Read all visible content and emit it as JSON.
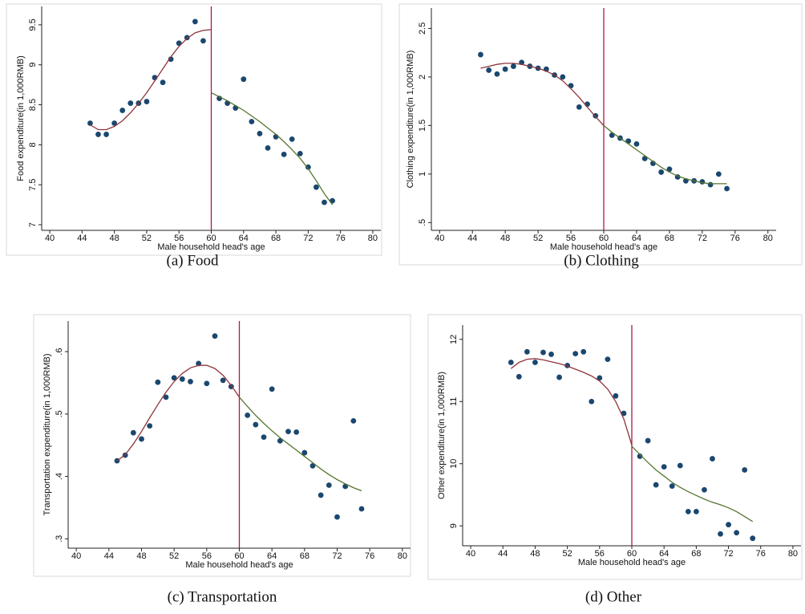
{
  "chart_data": [
    {
      "type": "scatter",
      "caption": "(a) Food",
      "xlabel": "Male household head's age",
      "ylabel": "Food expenditure(in 1,000RMB)",
      "xlim": [
        39,
        81
      ],
      "xticks": [
        40,
        44,
        48,
        52,
        56,
        60,
        64,
        68,
        72,
        76,
        80
      ],
      "ylim": [
        6.93,
        9.73
      ],
      "yticks": [
        7,
        7.5,
        8,
        8.5,
        9,
        9.5
      ],
      "vline": 60,
      "vline_color": "#b0184a",
      "series": [
        {
          "style": "points",
          "color": "#1a476f",
          "x": [
            45,
            46,
            47,
            48,
            49,
            50,
            51,
            52,
            53,
            54,
            55,
            56,
            57,
            58,
            59,
            61,
            62,
            63,
            64,
            65,
            66,
            67,
            68,
            69,
            70,
            71,
            72,
            73,
            74,
            75
          ],
          "values": [
            8.27,
            8.13,
            8.13,
            8.27,
            8.43,
            8.52,
            8.52,
            8.54,
            8.84,
            8.78,
            9.07,
            9.27,
            9.34,
            9.54,
            9.3,
            8.58,
            8.52,
            8.46,
            8.82,
            8.29,
            8.14,
            7.96,
            8.1,
            7.88,
            8.07,
            7.89,
            7.72,
            7.47,
            7.28,
            7.3
          ]
        },
        {
          "style": "line",
          "color": "#90353b",
          "x": [
            45,
            46,
            47,
            48,
            49,
            50,
            51,
            52,
            53,
            54,
            55,
            56,
            57,
            58,
            59,
            60
          ],
          "values": [
            8.25,
            8.19,
            8.19,
            8.23,
            8.3,
            8.4,
            8.52,
            8.65,
            8.8,
            8.95,
            9.1,
            9.23,
            9.33,
            9.4,
            9.43,
            9.44
          ]
        },
        {
          "style": "line",
          "color": "#55752f",
          "x": [
            60,
            61,
            62,
            63,
            64,
            65,
            66,
            67,
            68,
            69,
            70,
            71,
            72,
            73,
            74,
            75
          ],
          "values": [
            8.65,
            8.6,
            8.55,
            8.49,
            8.43,
            8.36,
            8.29,
            8.21,
            8.13,
            8.04,
            7.94,
            7.83,
            7.7,
            7.55,
            7.39,
            7.25
          ]
        }
      ]
    },
    {
      "type": "scatter",
      "caption": "(b) Clothing",
      "xlabel": "Male household head's age",
      "ylabel": "Clothing expenditure(in 1,000RMB)",
      "xlim": [
        39,
        81
      ],
      "xticks": [
        40,
        44,
        48,
        52,
        56,
        60,
        64,
        68,
        72,
        76,
        80
      ],
      "ylim": [
        0.42,
        2.71
      ],
      "yticks": [
        {
          "value": 0.5,
          "label": ".5"
        },
        1,
        1.5,
        2,
        2.5
      ],
      "vline": 60,
      "vline_color": "#b0184a",
      "series": [
        {
          "style": "points",
          "color": "#1a476f",
          "x": [
            45,
            46,
            47,
            48,
            49,
            50,
            51,
            52,
            53,
            54,
            55,
            56,
            57,
            58,
            59,
            61,
            62,
            63,
            64,
            65,
            66,
            67,
            68,
            69,
            70,
            71,
            72,
            73,
            74,
            75
          ],
          "values": [
            2.23,
            2.07,
            2.03,
            2.08,
            2.11,
            2.15,
            2.11,
            2.09,
            2.08,
            2.02,
            2.0,
            1.91,
            1.69,
            1.72,
            1.6,
            1.4,
            1.37,
            1.34,
            1.31,
            1.16,
            1.11,
            1.02,
            1.05,
            0.97,
            0.93,
            0.93,
            0.92,
            0.89,
            1.0,
            0.85
          ]
        },
        {
          "style": "line",
          "color": "#90353b",
          "x": [
            45,
            46,
            47,
            48,
            49,
            50,
            51,
            52,
            53,
            54,
            55,
            56,
            57,
            58,
            59,
            60
          ],
          "values": [
            2.09,
            2.11,
            2.13,
            2.14,
            2.14,
            2.13,
            2.11,
            2.09,
            2.06,
            2.02,
            1.96,
            1.88,
            1.79,
            1.69,
            1.59,
            1.5
          ]
        },
        {
          "style": "line",
          "color": "#55752f",
          "x": [
            60,
            61,
            62,
            63,
            64,
            65,
            66,
            67,
            68,
            69,
            70,
            71,
            72,
            73,
            74,
            75
          ],
          "values": [
            1.5,
            1.43,
            1.37,
            1.31,
            1.25,
            1.19,
            1.13,
            1.07,
            1.02,
            0.98,
            0.95,
            0.93,
            0.91,
            0.9,
            0.9,
            0.9
          ]
        }
      ]
    },
    {
      "type": "scatter",
      "caption": "(c) Transportation",
      "xlabel": "Male household head's age",
      "ylabel": "Transportation expenditure(in 1,000RMB)",
      "xlim": [
        39,
        81
      ],
      "xticks": [
        40,
        44,
        48,
        52,
        56,
        60,
        64,
        68,
        72,
        76,
        80
      ],
      "ylim": [
        0.285,
        0.649
      ],
      "yticks": [
        {
          "value": 0.3,
          "label": ".3"
        },
        {
          "value": 0.4,
          "label": ".4"
        },
        {
          "value": 0.5,
          "label": ".5"
        },
        {
          "value": 0.6,
          "label": ".6"
        }
      ],
      "vline": 60,
      "vline_color": "#b0184a",
      "series": [
        {
          "style": "points",
          "color": "#1a476f",
          "x": [
            45,
            46,
            47,
            48,
            49,
            50,
            51,
            52,
            53,
            54,
            55,
            56,
            57,
            58,
            59,
            61,
            62,
            63,
            64,
            65,
            66,
            67,
            68,
            69,
            70,
            71,
            72,
            73,
            74,
            75
          ],
          "values": [
            0.425,
            0.434,
            0.47,
            0.46,
            0.481,
            0.551,
            0.527,
            0.558,
            0.556,
            0.552,
            0.581,
            0.549,
            0.625,
            0.554,
            0.544,
            0.498,
            0.483,
            0.463,
            0.54,
            0.457,
            0.472,
            0.471,
            0.438,
            0.417,
            0.37,
            0.386,
            0.335,
            0.384,
            0.489,
            0.348
          ]
        },
        {
          "style": "line",
          "color": "#90353b",
          "x": [
            45,
            46,
            47,
            48,
            49,
            50,
            51,
            52,
            53,
            54,
            55,
            56,
            57,
            58,
            59,
            60
          ],
          "values": [
            0.425,
            0.435,
            0.452,
            0.472,
            0.494,
            0.515,
            0.535,
            0.552,
            0.565,
            0.574,
            0.578,
            0.578,
            0.573,
            0.562,
            0.546,
            0.527
          ]
        },
        {
          "style": "line",
          "color": "#55752f",
          "x": [
            60,
            61,
            62,
            63,
            64,
            65,
            66,
            67,
            68,
            69,
            70,
            71,
            72,
            73,
            74,
            75
          ],
          "values": [
            0.527,
            0.512,
            0.498,
            0.485,
            0.473,
            0.462,
            0.452,
            0.442,
            0.432,
            0.422,
            0.412,
            0.403,
            0.395,
            0.388,
            0.382,
            0.377
          ]
        }
      ]
    },
    {
      "type": "scatter",
      "caption": "(d) Other",
      "xlabel": "Male household head's age",
      "ylabel": "Other expenditure(in 1,000RMB)",
      "xlim": [
        39,
        81
      ],
      "xticks": [
        40,
        44,
        48,
        52,
        56,
        60,
        64,
        68,
        72,
        76,
        80
      ],
      "ylim": [
        8.68,
        12.23
      ],
      "yticks": [
        9,
        10,
        11,
        12
      ],
      "vline": 60,
      "vline_color": "#b0184a",
      "series": [
        {
          "style": "points",
          "color": "#1a476f",
          "x": [
            45,
            46,
            47,
            48,
            49,
            50,
            51,
            52,
            53,
            54,
            55,
            56,
            57,
            58,
            59,
            61,
            62,
            63,
            64,
            65,
            66,
            67,
            68,
            69,
            70,
            71,
            72,
            73,
            74,
            75
          ],
          "values": [
            11.63,
            11.4,
            11.8,
            11.63,
            11.79,
            11.76,
            11.39,
            11.58,
            11.77,
            11.8,
            11.0,
            11.38,
            11.68,
            11.09,
            10.81,
            10.12,
            10.37,
            9.66,
            9.95,
            9.64,
            9.97,
            9.23,
            9.23,
            9.58,
            10.08,
            8.87,
            9.02,
            8.89,
            9.9,
            8.8
          ]
        },
        {
          "style": "line",
          "color": "#90353b",
          "x": [
            45,
            46,
            47,
            48,
            49,
            50,
            51,
            52,
            53,
            54,
            55,
            56,
            57,
            58,
            59,
            60
          ],
          "values": [
            11.53,
            11.63,
            11.68,
            11.69,
            11.67,
            11.64,
            11.61,
            11.57,
            11.52,
            11.47,
            11.41,
            11.33,
            11.2,
            11.0,
            10.72,
            10.3
          ]
        },
        {
          "style": "line",
          "color": "#55752f",
          "x": [
            60,
            61,
            62,
            63,
            64,
            65,
            66,
            67,
            68,
            69,
            70,
            71,
            72,
            73,
            74,
            75
          ],
          "values": [
            10.28,
            10.15,
            10.02,
            9.9,
            9.8,
            9.7,
            9.62,
            9.55,
            9.49,
            9.43,
            9.38,
            9.34,
            9.29,
            9.23,
            9.15,
            9.07
          ]
        }
      ]
    }
  ]
}
